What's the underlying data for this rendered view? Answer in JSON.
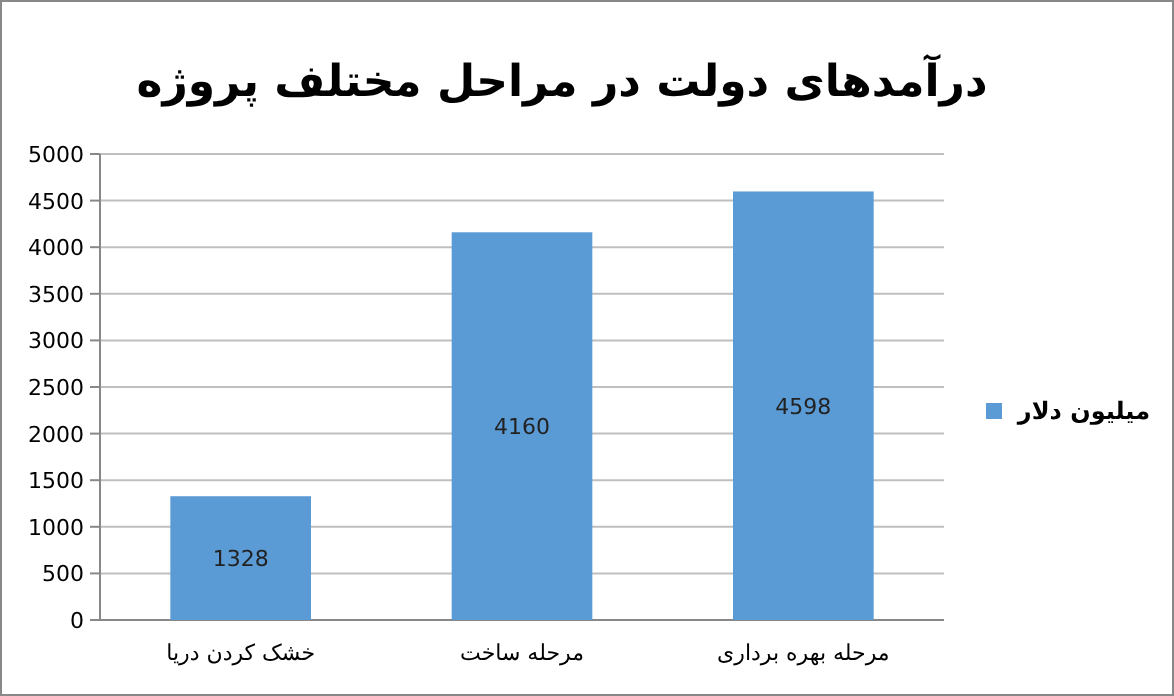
{
  "chart_data": {
    "type": "bar",
    "title": "درآمدهای دولت در مراحل مختلف پروژه",
    "categories": [
      "خشک کردن دریا",
      "مرحله ساخت",
      "مرحله بهره برداری"
    ],
    "series": [
      {
        "name": "میلیون دلار",
        "color": "#5b9bd5",
        "values": [
          1328,
          4160,
          4598
        ]
      }
    ],
    "ylim": [
      0,
      5000
    ],
    "yticks": [
      0,
      500,
      1000,
      1500,
      2000,
      2500,
      3000,
      3500,
      4000,
      4500,
      5000
    ],
    "grid": "y",
    "legend": "right",
    "data_labels": true
  }
}
